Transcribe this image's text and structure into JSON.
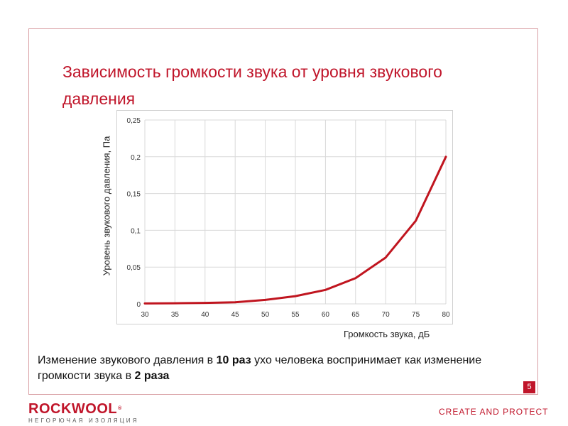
{
  "slide": {
    "title": "Зависимость громкости звука от уровня звукового давления",
    "note_part1": "Изменение звукового давления в ",
    "note_bold1": "10 раз",
    "note_part2": " ухо человека воспринимает как изменение громкости звука в ",
    "note_bold2": "2 раза",
    "page_number": "5",
    "logo_text": "ROCKWOOL",
    "logo_mark": "®",
    "logo_tagline": "НЕГОРЮЧАЯ ИЗОЛЯЦИЯ",
    "slogan": "CREATE AND PROTECT"
  },
  "colors": {
    "accent": "#c0152a",
    "line": "#c0151f",
    "grid": "#d9d9d9"
  },
  "chart_data": {
    "type": "line",
    "title": "",
    "xlabel": "Громкость звука, дБ",
    "ylabel": "Уровень звукового давления, Па",
    "x": [
      30,
      35,
      40,
      45,
      50,
      55,
      60,
      65,
      70,
      75,
      80
    ],
    "xticks": [
      "30",
      "35",
      "40",
      "45",
      "50",
      "55",
      "60",
      "65",
      "70",
      "75",
      "80"
    ],
    "yticks": [
      "0",
      "0,05",
      "0,1",
      "0,15",
      "0,2",
      "0,25"
    ],
    "series": [
      {
        "values": [
          0.0006,
          0.0009,
          0.0013,
          0.0022,
          0.0054,
          0.0105,
          0.019,
          0.035,
          0.063,
          0.113,
          0.2
        ]
      }
    ],
    "xlim": [
      30,
      80
    ],
    "ylim": [
      0,
      0.25
    ],
    "grid": true,
    "legend": "none"
  }
}
